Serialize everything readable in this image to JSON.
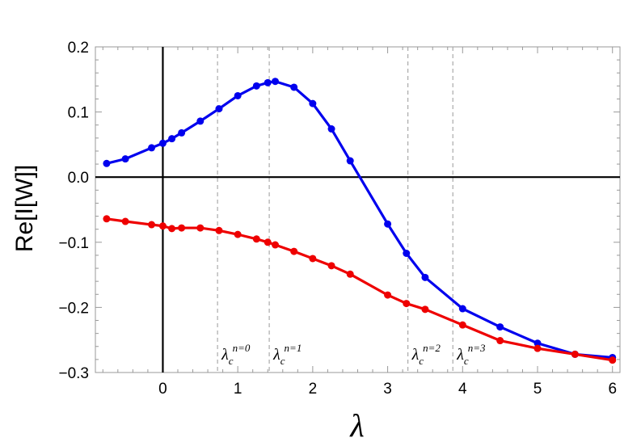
{
  "chart_data": {
    "type": "line",
    "ylabel": "Re[I[W]]",
    "xlabel": "λ",
    "xlim": [
      -0.9,
      6.1
    ],
    "ylim": [
      -0.3,
      0.2
    ],
    "x_ticks": [
      "0",
      "1",
      "2",
      "3",
      "4",
      "5",
      "6"
    ],
    "y_ticks": [
      "−0.3",
      "−0.2",
      "−0.1",
      "0.0",
      "0.1",
      "0.2"
    ],
    "grid": false,
    "series": [
      {
        "color": "#0000ee",
        "points": [
          [
            -0.75,
            0.021
          ],
          [
            -0.5,
            0.028
          ],
          [
            -0.15,
            0.045
          ],
          [
            0.0,
            0.052
          ],
          [
            0.12,
            0.059
          ],
          [
            0.25,
            0.068
          ],
          [
            0.5,
            0.086
          ],
          [
            0.75,
            0.105
          ],
          [
            1.0,
            0.125
          ],
          [
            1.25,
            0.14
          ],
          [
            1.4,
            0.145
          ],
          [
            1.5,
            0.147
          ],
          [
            1.75,
            0.138
          ],
          [
            2.0,
            0.113
          ],
          [
            2.25,
            0.074
          ],
          [
            2.5,
            0.025
          ],
          [
            3.0,
            -0.072
          ],
          [
            3.25,
            -0.117
          ],
          [
            3.5,
            -0.154
          ],
          [
            4.0,
            -0.202
          ],
          [
            4.5,
            -0.23
          ],
          [
            5.0,
            -0.255
          ],
          [
            5.5,
            -0.272
          ],
          [
            6.0,
            -0.277
          ]
        ]
      },
      {
        "color": "#ee0000",
        "points": [
          [
            -0.75,
            -0.064
          ],
          [
            -0.5,
            -0.068
          ],
          [
            -0.15,
            -0.073
          ],
          [
            0.0,
            -0.075
          ],
          [
            0.12,
            -0.079
          ],
          [
            0.25,
            -0.078
          ],
          [
            0.5,
            -0.078
          ],
          [
            0.75,
            -0.082
          ],
          [
            1.0,
            -0.088
          ],
          [
            1.25,
            -0.095
          ],
          [
            1.4,
            -0.1
          ],
          [
            1.5,
            -0.104
          ],
          [
            1.75,
            -0.114
          ],
          [
            2.0,
            -0.125
          ],
          [
            2.25,
            -0.136
          ],
          [
            2.5,
            -0.149
          ],
          [
            3.0,
            -0.181
          ],
          [
            3.25,
            -0.194
          ],
          [
            3.5,
            -0.203
          ],
          [
            4.0,
            -0.227
          ],
          [
            4.5,
            -0.251
          ],
          [
            5.0,
            -0.263
          ],
          [
            5.5,
            -0.272
          ],
          [
            6.0,
            -0.281
          ]
        ]
      }
    ],
    "critical_points": [
      {
        "x": 0.73,
        "symbol": "λ",
        "sub": "c",
        "sup": "n=0"
      },
      {
        "x": 1.42,
        "symbol": "λ",
        "sub": "c",
        "sup": "n=1"
      },
      {
        "x": 3.27,
        "symbol": "λ",
        "sub": "c",
        "sup": "n=2"
      },
      {
        "x": 3.87,
        "symbol": "λ",
        "sub": "c",
        "sup": "n=3"
      }
    ]
  }
}
